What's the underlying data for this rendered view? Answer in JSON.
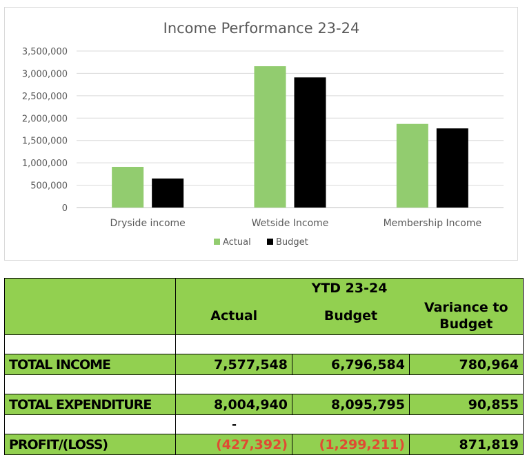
{
  "chart_data": {
    "type": "bar",
    "title": "Income Performance 23-24",
    "categories": [
      "Dryside income",
      "Wetside Income",
      "Membership Income"
    ],
    "series": [
      {
        "name": "Actual",
        "color": "#92cc6f",
        "values": [
          910000,
          3160000,
          1870000
        ]
      },
      {
        "name": "Budget",
        "color": "#000000",
        "values": [
          650000,
          2910000,
          1770000
        ]
      }
    ],
    "ylim": [
      0,
      3500000
    ],
    "yticks": [
      "3,500,000",
      "3,000,000",
      "2,500,000",
      "2,000,000",
      "1,500,000",
      "1,000,000",
      "500,000",
      "0"
    ],
    "ytick_values": [
      3500000,
      3000000,
      2500000,
      2000000,
      1500000,
      1000000,
      500000,
      0
    ],
    "grid": true,
    "legend": "bottom"
  },
  "table": {
    "period": "YTD 23-24",
    "col_actual": "Actual",
    "col_budget": "Budget",
    "col_variance": "Variance to Budget",
    "rows": {
      "income": {
        "label": "TOTAL INCOME",
        "actual": "7,577,548",
        "budget": "6,796,584",
        "variance": "780,964"
      },
      "expenditure": {
        "label": "TOTAL EXPENDITURE",
        "actual": "8,004,940",
        "budget": "8,095,795",
        "variance": "90,855"
      },
      "dash": "-",
      "profit": {
        "label": "PROFIT/(LOSS)",
        "actual": "(427,392)",
        "budget": "(1,299,211)",
        "variance": "871,819"
      }
    }
  }
}
